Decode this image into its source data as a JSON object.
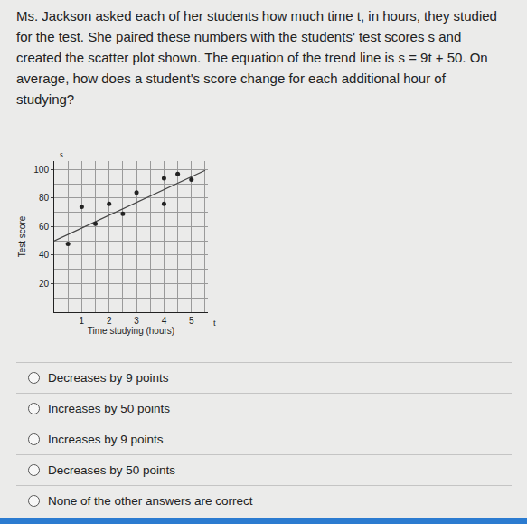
{
  "question": "Ms. Jackson asked each of her students how much time t, in hours, they studied for the test. She paired these numbers with the students' test scores s and created the scatter plot shown. The equation of the trend line is s = 9t + 50. On average, how does a student's score change for each additional hour of studying?",
  "chart_data": {
    "type": "scatter",
    "xlabel": "Time studying (hours)",
    "ylabel": "Test score",
    "x_var": "t",
    "y_var": "s",
    "x": [
      0.5,
      1,
      1.5,
      2,
      2.5,
      3,
      4,
      4,
      4.5,
      5
    ],
    "values": [
      48,
      74,
      62,
      76,
      69,
      84,
      76,
      94,
      97,
      93
    ],
    "color": "#222222",
    "marker": "circle",
    "trend_line": {
      "type": "line",
      "x": [
        0,
        5.5
      ],
      "values": [
        50,
        99.5
      ],
      "color": "#444444"
    },
    "xlim": [
      0,
      5.6
    ],
    "xticks": [
      1,
      2,
      3,
      4,
      5
    ],
    "ylim": [
      0,
      106
    ],
    "yticks": [
      20,
      40,
      60,
      80,
      100
    ],
    "grid": true
  },
  "options": [
    "Decreases by 9 points",
    "Increases by 50 points",
    "Increases by 9 points",
    "Decreases by 50 points",
    "None of the other answers are correct"
  ]
}
